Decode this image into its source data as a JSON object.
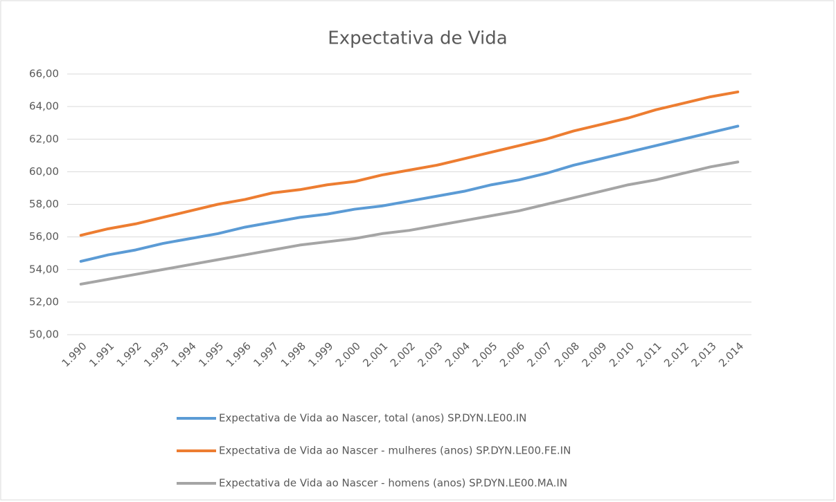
{
  "chart_data": {
    "type": "line",
    "title": "Expectativa de Vida",
    "categories": [
      "1.990",
      "1.991",
      "1.992",
      "1.993",
      "1.994",
      "1.995",
      "1.996",
      "1.997",
      "1.998",
      "1.999",
      "2.000",
      "2.001",
      "2.002",
      "2.003",
      "2.004",
      "2.005",
      "2.006",
      "2.007",
      "2.008",
      "2.009",
      "2.010",
      "2.011",
      "2.012",
      "2.013",
      "2.014"
    ],
    "series": [
      {
        "name": "Expectativa de Vida ao Nascer, total (anos) SP.DYN.LE00.IN",
        "color": "#5b9bd5",
        "values": [
          54.5,
          54.9,
          55.2,
          55.6,
          55.9,
          56.2,
          56.6,
          56.9,
          57.2,
          57.4,
          57.7,
          57.9,
          58.2,
          58.5,
          58.8,
          59.2,
          59.5,
          59.9,
          60.4,
          60.8,
          61.2,
          61.6,
          62.0,
          62.4,
          62.8
        ]
      },
      {
        "name": "Expectativa de Vida ao Nascer - mulheres (anos) SP.DYN.LE00.FE.IN",
        "color": "#ed7d31",
        "values": [
          56.1,
          56.5,
          56.8,
          57.2,
          57.6,
          58.0,
          58.3,
          58.7,
          58.9,
          59.2,
          59.4,
          59.8,
          60.1,
          60.4,
          60.8,
          61.2,
          61.6,
          62.0,
          62.5,
          62.9,
          63.3,
          63.8,
          64.2,
          64.6,
          64.9
        ]
      },
      {
        "name": "Expectativa de Vida ao Nascer - homens (anos) SP.DYN.LE00.MA.IN",
        "color": "#a5a5a5",
        "values": [
          53.1,
          53.4,
          53.7,
          54.0,
          54.3,
          54.6,
          54.9,
          55.2,
          55.5,
          55.7,
          55.9,
          56.2,
          56.4,
          56.7,
          57.0,
          57.3,
          57.6,
          58.0,
          58.4,
          58.8,
          59.2,
          59.5,
          59.9,
          60.3,
          60.6
        ]
      }
    ],
    "ylim": [
      50,
      66
    ],
    "yticks": [
      {
        "value": 50,
        "label": "50,00"
      },
      {
        "value": 52,
        "label": "52,00"
      },
      {
        "value": 54,
        "label": "54,00"
      },
      {
        "value": 56,
        "label": "56,00"
      },
      {
        "value": 58,
        "label": "58,00"
      },
      {
        "value": 60,
        "label": "60,00"
      },
      {
        "value": 62,
        "label": "62,00"
      },
      {
        "value": 64,
        "label": "64,00"
      },
      {
        "value": 66,
        "label": "66,00"
      }
    ],
    "grid": true,
    "legend": "bottom"
  }
}
